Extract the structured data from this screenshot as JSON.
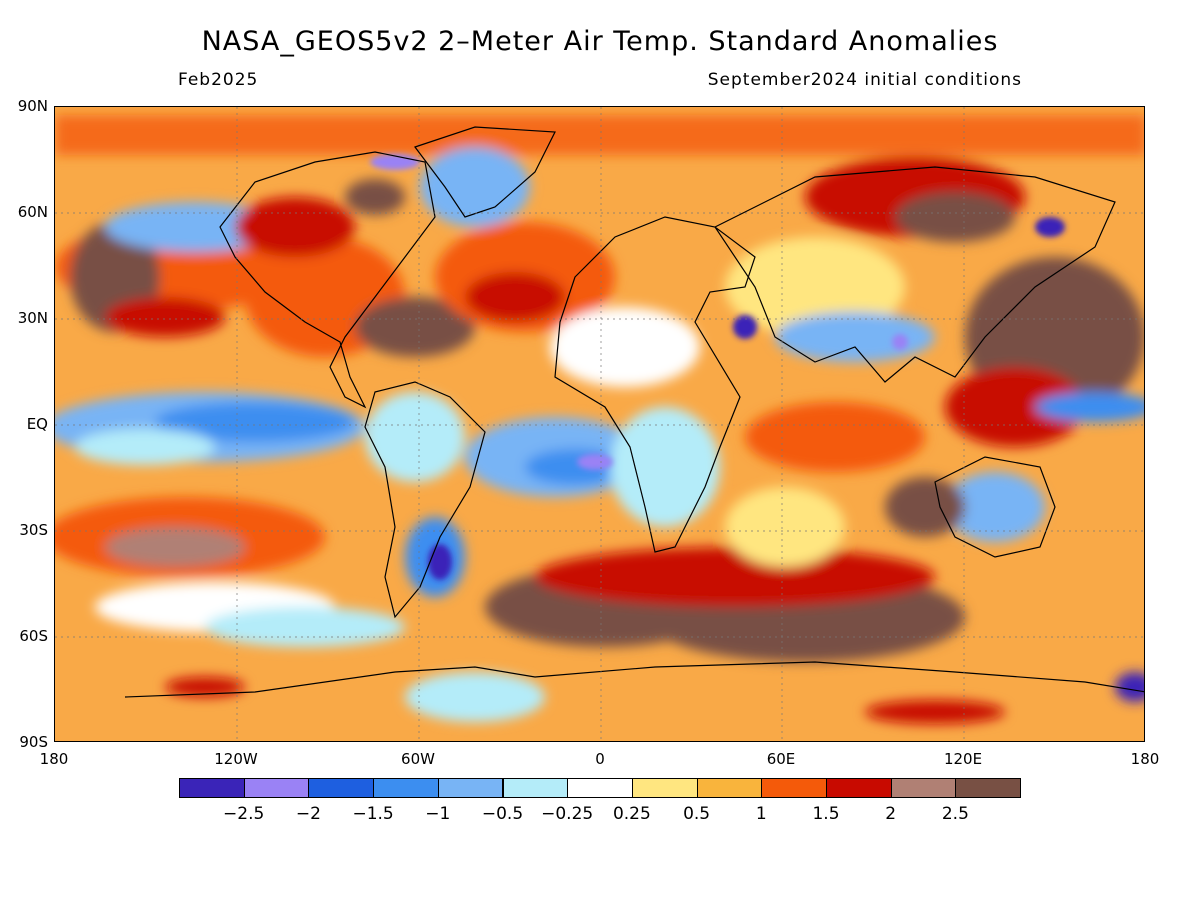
{
  "title": "NASA_GEOS5v2 2–Meter Air Temp. Standard Anomalies",
  "forecast_month": "Feb2025",
  "initial_conditions": "September2024 initial conditions",
  "map": {
    "lat_labels": [
      "90N",
      "60N",
      "30N",
      "EQ",
      "30S",
      "60S",
      "90S"
    ],
    "lon_labels": [
      "180",
      "120W",
      "60W",
      "0",
      "60E",
      "120E",
      "180"
    ]
  },
  "colorbar": {
    "colors": [
      "#3a24b8",
      "#9a82f5",
      "#1e5fe0",
      "#3c8ef0",
      "#78b4f5",
      "#b4ecf9",
      "#ffffff",
      "#ffe680",
      "#f9b43c",
      "#f45a0a",
      "#c80a00",
      "#b08074",
      "#785044"
    ],
    "labels": [
      "−2.5",
      "−2",
      "−1.5",
      "−1",
      "−0.5",
      "−0.25",
      "0.25",
      "0.5",
      "1",
      "1.5",
      "2",
      "2.5"
    ]
  },
  "legend": {
    "colors": {
      "ocean_base": "#f9a947",
      "strong_warm": "#c80a00",
      "very_warm": "#785044",
      "cool": "#78b4f5",
      "cold": "#1e5fe0",
      "neutral": "#ffffff"
    }
  }
}
